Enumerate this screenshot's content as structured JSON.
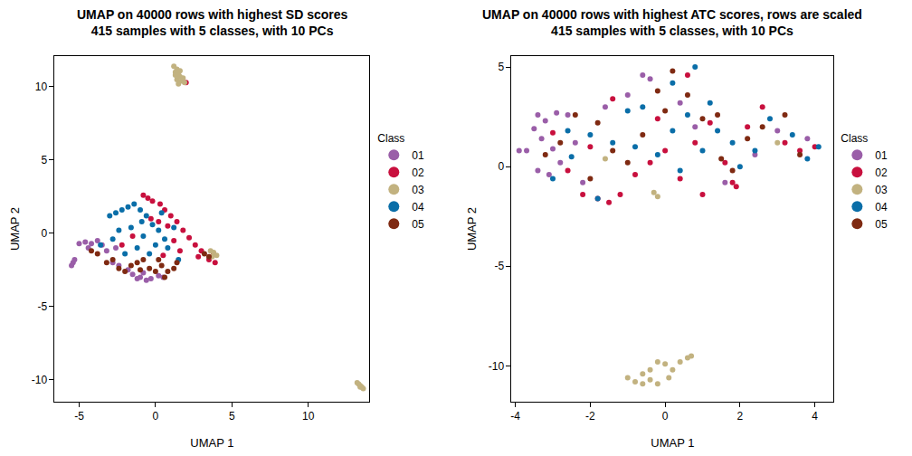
{
  "chart_data": [
    {
      "type": "scatter",
      "title": "UMAP on 40000 rows with highest SD scores\n415 samples with 5 classes, with 10 PCs",
      "x_label": "UMAP 1",
      "y_label": "UMAP 2",
      "xlim": [
        -6.6,
        14.0
      ],
      "ylim": [
        -11.5,
        12.1
      ],
      "xticks": [
        -5,
        0,
        5,
        10
      ],
      "yticks": [
        -10,
        -5,
        0,
        5,
        10
      ],
      "grid": false,
      "legend": "right",
      "legend_title": "Class",
      "marker": "circle",
      "series": [
        {
          "name": "01",
          "color": "#9A5EA8",
          "values": [
            [
              -5.4,
              -2.0
            ],
            [
              -5.3,
              -1.8
            ],
            [
              -5.5,
              -2.2
            ],
            [
              -5.0,
              -0.7
            ],
            [
              -4.6,
              -0.6
            ],
            [
              -4.2,
              -0.7
            ],
            [
              -3.8,
              -0.5
            ],
            [
              -3.5,
              -0.8
            ],
            [
              -4.4,
              -1.0
            ],
            [
              -3.2,
              -1.2
            ],
            [
              -2.8,
              -2.0
            ],
            [
              -2.4,
              -2.2
            ],
            [
              -1.5,
              -2.8
            ],
            [
              -1.0,
              -3.0
            ],
            [
              -0.6,
              -3.2
            ],
            [
              -0.3,
              -3.1
            ],
            [
              0.2,
              -2.9
            ],
            [
              -1.8,
              -2.5
            ],
            [
              -0.8,
              -2.7
            ],
            [
              -2.6,
              -1.0
            ],
            [
              0.5,
              -3.0
            ],
            [
              -1.2,
              -3.1
            ]
          ]
        },
        {
          "name": "02",
          "color": "#C8103E",
          "values": [
            [
              2.0,
              10.3
            ],
            [
              -0.8,
              2.6
            ],
            [
              -0.5,
              2.4
            ],
            [
              -0.2,
              2.2
            ],
            [
              0.3,
              2.0
            ],
            [
              0.6,
              1.6
            ],
            [
              1.0,
              1.2
            ],
            [
              1.4,
              0.8
            ],
            [
              1.8,
              0.2
            ],
            [
              2.2,
              -0.3
            ],
            [
              2.6,
              -0.8
            ],
            [
              3.0,
              -1.2
            ],
            [
              3.5,
              -1.8
            ],
            [
              3.9,
              -2.0
            ],
            [
              0.8,
              0.5
            ],
            [
              0.2,
              0.8
            ],
            [
              1.2,
              -0.5
            ],
            [
              -0.3,
              1.0
            ],
            [
              1.6,
              -1.2
            ],
            [
              2.8,
              -1.6
            ],
            [
              -1.5,
              -0.2
            ],
            [
              0.5,
              -1.5
            ],
            [
              3.8,
              -1.4
            ],
            [
              -2.2,
              -0.8
            ]
          ]
        },
        {
          "name": "03",
          "color": "#C2B280",
          "values": [
            [
              1.2,
              11.4
            ],
            [
              1.4,
              11.2
            ],
            [
              1.3,
              11.0
            ],
            [
              1.5,
              10.9
            ],
            [
              1.6,
              10.7
            ],
            [
              1.4,
              10.5
            ],
            [
              1.7,
              10.4
            ],
            [
              1.8,
              10.6
            ],
            [
              1.5,
              10.2
            ],
            [
              1.9,
              10.3
            ],
            [
              1.3,
              10.8
            ],
            [
              1.6,
              11.1
            ],
            [
              13.2,
              -10.2
            ],
            [
              13.3,
              -10.3
            ],
            [
              13.4,
              -10.4
            ],
            [
              13.5,
              -10.5
            ],
            [
              13.6,
              -10.6
            ],
            [
              13.4,
              -10.5
            ],
            [
              3.6,
              -1.2
            ],
            [
              3.8,
              -1.3
            ],
            [
              4.0,
              -1.5
            ],
            [
              3.7,
              -1.6
            ]
          ]
        },
        {
          "name": "04",
          "color": "#0A6EA8",
          "values": [
            [
              -3.0,
              1.2
            ],
            [
              -2.6,
              1.4
            ],
            [
              -2.2,
              1.6
            ],
            [
              -1.8,
              1.8
            ],
            [
              -1.4,
              2.0
            ],
            [
              -1.0,
              1.6
            ],
            [
              -0.6,
              1.2
            ],
            [
              -0.2,
              0.6
            ],
            [
              0.2,
              0.2
            ],
            [
              0.6,
              -0.4
            ],
            [
              -2.4,
              0.2
            ],
            [
              -1.6,
              0.4
            ],
            [
              -0.8,
              -0.2
            ],
            [
              -1.2,
              -1.0
            ],
            [
              -0.4,
              -1.4
            ],
            [
              0.0,
              -0.8
            ],
            [
              0.8,
              -1.0
            ],
            [
              1.2,
              0.4
            ],
            [
              -2.8,
              -0.4
            ],
            [
              -3.6,
              -0.8
            ],
            [
              -0.9,
              0.8
            ],
            [
              0.4,
              1.4
            ],
            [
              1.5,
              -1.8
            ],
            [
              -2.0,
              -1.4
            ]
          ]
        },
        {
          "name": "05",
          "color": "#7F2A12",
          "values": [
            [
              -3.2,
              -2.0
            ],
            [
              -2.8,
              -1.8
            ],
            [
              -2.4,
              -2.4
            ],
            [
              -2.0,
              -2.6
            ],
            [
              -1.6,
              -2.2
            ],
            [
              -1.2,
              -2.0
            ],
            [
              -0.8,
              -1.8
            ],
            [
              -0.4,
              -2.4
            ],
            [
              0.0,
              -2.6
            ],
            [
              0.4,
              -2.2
            ],
            [
              0.8,
              -2.6
            ],
            [
              1.2,
              -2.4
            ],
            [
              1.4,
              -2.0
            ],
            [
              0.2,
              -1.8
            ],
            [
              -1.0,
              -2.5
            ],
            [
              3.2,
              -1.4
            ],
            [
              3.5,
              -1.6
            ],
            [
              -4.2,
              -1.2
            ],
            [
              -3.8,
              -1.4
            ],
            [
              0.6,
              -3.0
            ]
          ]
        }
      ]
    },
    {
      "type": "scatter",
      "title": "UMAP on 40000 rows with highest ATC scores, rows are scaled\n415 samples with 5 classes, with 10 PCs",
      "x_label": "UMAP 1",
      "y_label": "UMAP 2",
      "xlim": [
        -4.1,
        4.5
      ],
      "ylim": [
        -11.8,
        5.55
      ],
      "xticks": [
        -4,
        -2,
        0,
        2,
        4
      ],
      "yticks": [
        -10,
        -5,
        0,
        5
      ],
      "grid": false,
      "legend": "right",
      "legend_title": "Class",
      "marker": "circle",
      "series": [
        {
          "name": "01",
          "color": "#9A5EA8",
          "values": [
            [
              -3.9,
              0.8
            ],
            [
              -3.7,
              0.8
            ],
            [
              -3.4,
              2.6
            ],
            [
              -3.2,
              2.3
            ],
            [
              -3.5,
              1.9
            ],
            [
              -3.3,
              1.4
            ],
            [
              -3.0,
              0.9
            ],
            [
              -3.4,
              -0.2
            ],
            [
              -3.1,
              -0.4
            ],
            [
              -2.9,
              2.7
            ],
            [
              -2.6,
              2.6
            ],
            [
              -2.4,
              1.2
            ],
            [
              -2.8,
              0.2
            ],
            [
              -1.6,
              3.0
            ],
            [
              -1.0,
              3.6
            ],
            [
              -0.6,
              4.6
            ],
            [
              -0.4,
              4.4
            ],
            [
              0.4,
              3.2
            ],
            [
              0.8,
              2.0
            ],
            [
              1.6,
              -0.8
            ],
            [
              2.4,
              0.6
            ],
            [
              3.0,
              1.8
            ],
            [
              3.8,
              1.4
            ],
            [
              -2.2,
              -0.8
            ]
          ]
        },
        {
          "name": "02",
          "color": "#C8103E",
          "values": [
            [
              -3.0,
              1.7
            ],
            [
              -2.6,
              -0.2
            ],
            [
              -2.2,
              -1.4
            ],
            [
              -1.8,
              -1.6
            ],
            [
              -1.5,
              -1.8
            ],
            [
              -1.2,
              -1.4
            ],
            [
              -0.8,
              -0.4
            ],
            [
              -0.4,
              0.2
            ],
            [
              0.0,
              0.8
            ],
            [
              0.4,
              -0.6
            ],
            [
              0.8,
              1.2
            ],
            [
              1.2,
              2.2
            ],
            [
              1.6,
              0.2
            ],
            [
              1.8,
              -0.8
            ],
            [
              1.9,
              -1.0
            ],
            [
              2.2,
              2.0
            ],
            [
              2.6,
              3.0
            ],
            [
              3.2,
              1.2
            ],
            [
              3.6,
              0.8
            ],
            [
              4.0,
              1.0
            ],
            [
              -1.4,
              3.4
            ],
            [
              -0.2,
              2.4
            ],
            [
              0.6,
              4.6
            ],
            [
              -2.0,
              1.0
            ],
            [
              1.0,
              -1.4
            ]
          ]
        },
        {
          "name": "03",
          "color": "#C2B280",
          "values": [
            [
              -1.0,
              -10.6
            ],
            [
              -0.8,
              -10.8
            ],
            [
              -0.6,
              -10.9
            ],
            [
              -0.4,
              -10.7
            ],
            [
              -0.2,
              -10.9
            ],
            [
              -0.4,
              -10.2
            ],
            [
              -0.2,
              -9.8
            ],
            [
              0.0,
              -9.9
            ],
            [
              0.2,
              -10.2
            ],
            [
              0.4,
              -9.8
            ],
            [
              0.6,
              -9.6
            ],
            [
              0.7,
              -9.5
            ],
            [
              0.1,
              -10.6
            ],
            [
              -0.6,
              -10.4
            ],
            [
              -0.2,
              -1.5
            ],
            [
              -0.3,
              -1.3
            ],
            [
              3.0,
              1.2
            ],
            [
              -1.6,
              0.4
            ]
          ]
        },
        {
          "name": "04",
          "color": "#0A6EA8",
          "values": [
            [
              -3.0,
              -0.6
            ],
            [
              -2.5,
              0.5
            ],
            [
              -2.0,
              1.6
            ],
            [
              -1.4,
              1.2
            ],
            [
              -1.0,
              2.8
            ],
            [
              -0.6,
              3.0
            ],
            [
              0.2,
              4.2
            ],
            [
              0.8,
              5.0
            ],
            [
              0.6,
              2.6
            ],
            [
              0.2,
              1.8
            ],
            [
              -0.2,
              0.6
            ],
            [
              0.4,
              -0.2
            ],
            [
              1.0,
              0.8
            ],
            [
              1.4,
              1.8
            ],
            [
              1.8,
              1.2
            ],
            [
              2.0,
              0.0
            ],
            [
              2.4,
              0.8
            ],
            [
              2.8,
              2.4
            ],
            [
              3.4,
              1.6
            ],
            [
              3.8,
              0.4
            ],
            [
              -1.8,
              -1.6
            ],
            [
              -0.8,
              1.0
            ],
            [
              -2.6,
              1.8
            ],
            [
              1.2,
              3.2
            ],
            [
              4.1,
              1.0
            ]
          ]
        },
        {
          "name": "05",
          "color": "#7F2A12",
          "values": [
            [
              -3.2,
              0.6
            ],
            [
              -2.8,
              1.2
            ],
            [
              -2.4,
              2.6
            ],
            [
              -1.8,
              2.2
            ],
            [
              -1.4,
              0.8
            ],
            [
              -1.0,
              0.2
            ],
            [
              -0.6,
              1.6
            ],
            [
              -0.2,
              3.8
            ],
            [
              0.2,
              4.8
            ],
            [
              0.6,
              3.6
            ],
            [
              1.0,
              2.4
            ],
            [
              1.4,
              2.6
            ],
            [
              1.8,
              -0.2
            ],
            [
              2.2,
              1.4
            ],
            [
              2.6,
              2.0
            ],
            [
              3.2,
              2.6
            ],
            [
              3.6,
              0.6
            ],
            [
              0.0,
              2.8
            ],
            [
              -2.0,
              -0.6
            ],
            [
              1.5,
              0.4
            ]
          ]
        }
      ]
    }
  ]
}
